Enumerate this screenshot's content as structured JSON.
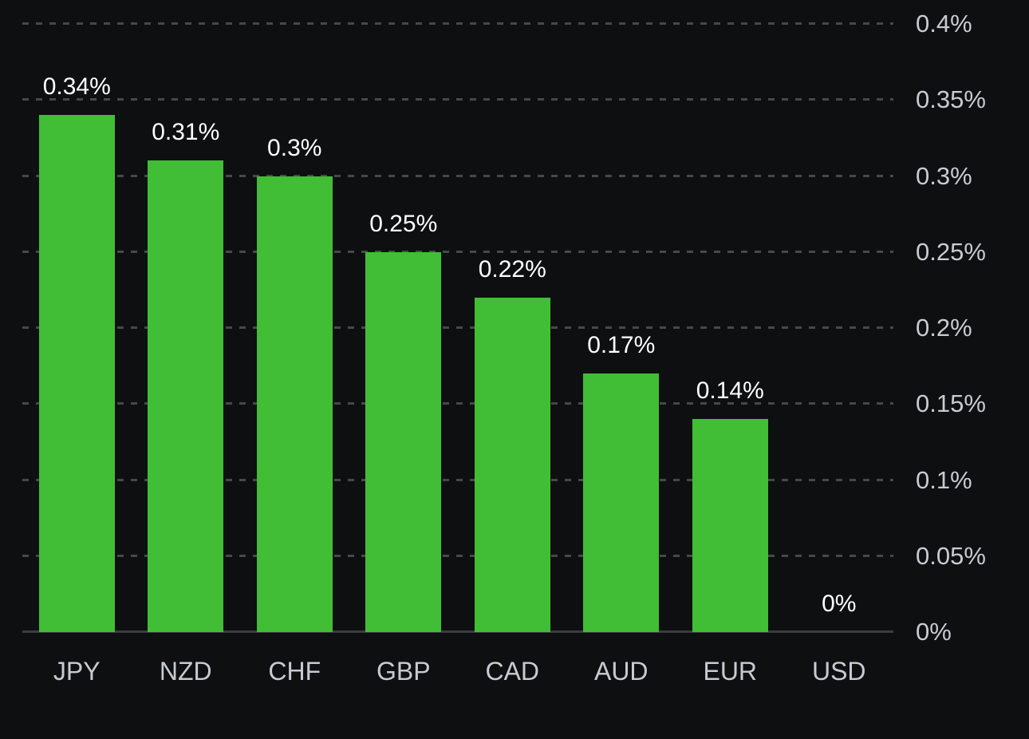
{
  "chart_data": {
    "type": "bar",
    "title": "",
    "xlabel": "",
    "ylabel": "",
    "categories": [
      "JPY",
      "NZD",
      "CHF",
      "GBP",
      "CAD",
      "AUD",
      "EUR",
      "USD"
    ],
    "values": [
      0.34,
      0.31,
      0.3,
      0.25,
      0.22,
      0.17,
      0.14,
      0
    ],
    "value_labels": [
      "0.34%",
      "0.31%",
      "0.3%",
      "0.25%",
      "0.22%",
      "0.17%",
      "0.14%",
      "0%"
    ],
    "y_ticks": [
      0,
      0.05,
      0.1,
      0.15,
      0.2,
      0.25,
      0.3,
      0.35,
      0.4
    ],
    "y_tick_labels": [
      "0%",
      "0.05%",
      "0.1%",
      "0.15%",
      "0.2%",
      "0.25%",
      "0.3%",
      "0.35%",
      "0.4%"
    ],
    "ylim": [
      0,
      0.4
    ],
    "y_axis_position": "right",
    "grid": "horizontal-dashed",
    "legend": "none",
    "colors": {
      "background": "#0e0f11",
      "bar": "#41bd36",
      "gridline": "#47484b",
      "axis_line": "#3c3d40",
      "tick_label": "#c7cbd1",
      "value_label": "#ffffff"
    }
  }
}
